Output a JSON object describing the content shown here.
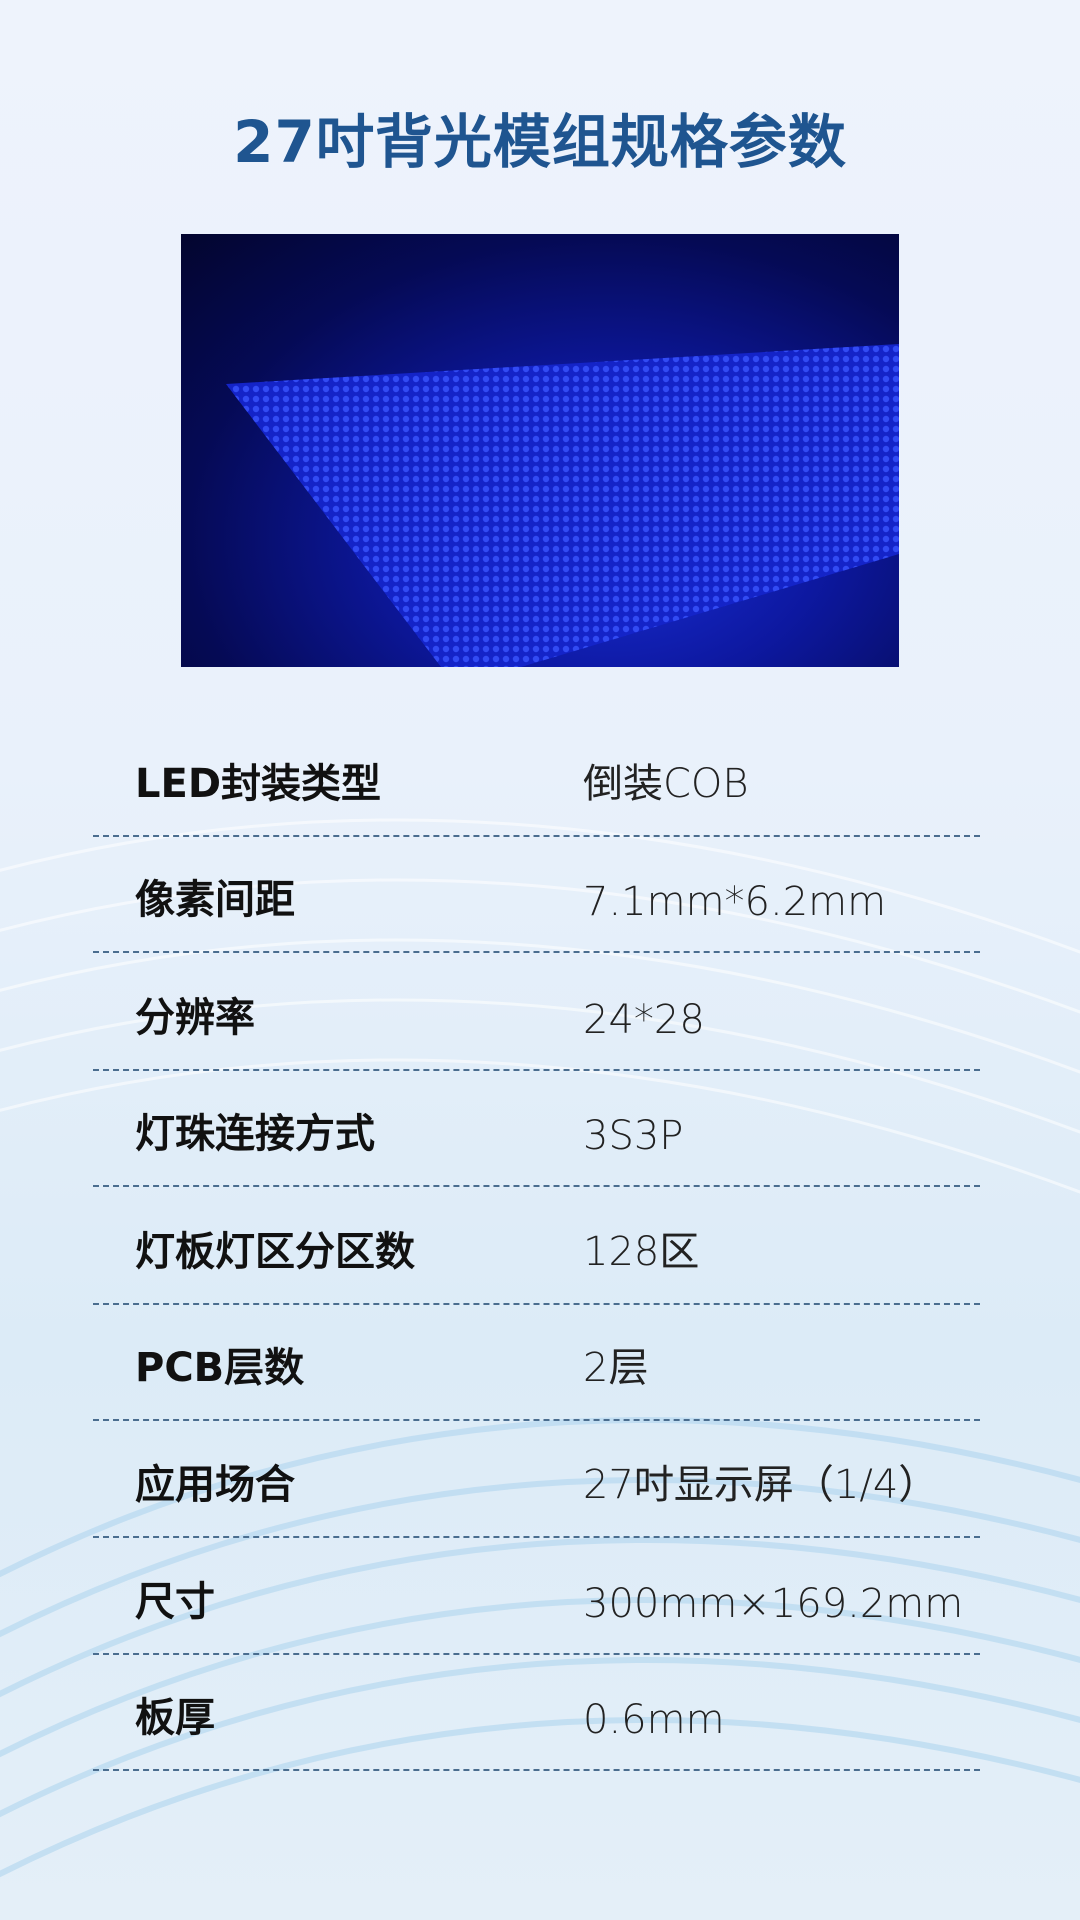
{
  "title": "27吋背光模组规格参数",
  "colors": {
    "title": "#1f5590",
    "photo_glow": "#1a2fd8"
  },
  "image": {
    "icon": "blue-led-backlight-panel-photo"
  },
  "specs": [
    {
      "label": "LED封装类型",
      "value": "倒装COB"
    },
    {
      "label": "像素间距",
      "value": "7.1mm*6.2mm"
    },
    {
      "label": "分辨率",
      "value": "24*28"
    },
    {
      "label": "灯珠连接方式",
      "value": "3S3P"
    },
    {
      "label": "灯板灯区分区数",
      "value": "128区"
    },
    {
      "label": "PCB层数",
      "value": "2层"
    },
    {
      "label": "应用场合",
      "value": "27吋显示屏（1/4）"
    },
    {
      "label": "尺寸",
      "value": "300mm×169.2mm"
    },
    {
      "label": "板厚",
      "value": "0.6mm"
    }
  ]
}
